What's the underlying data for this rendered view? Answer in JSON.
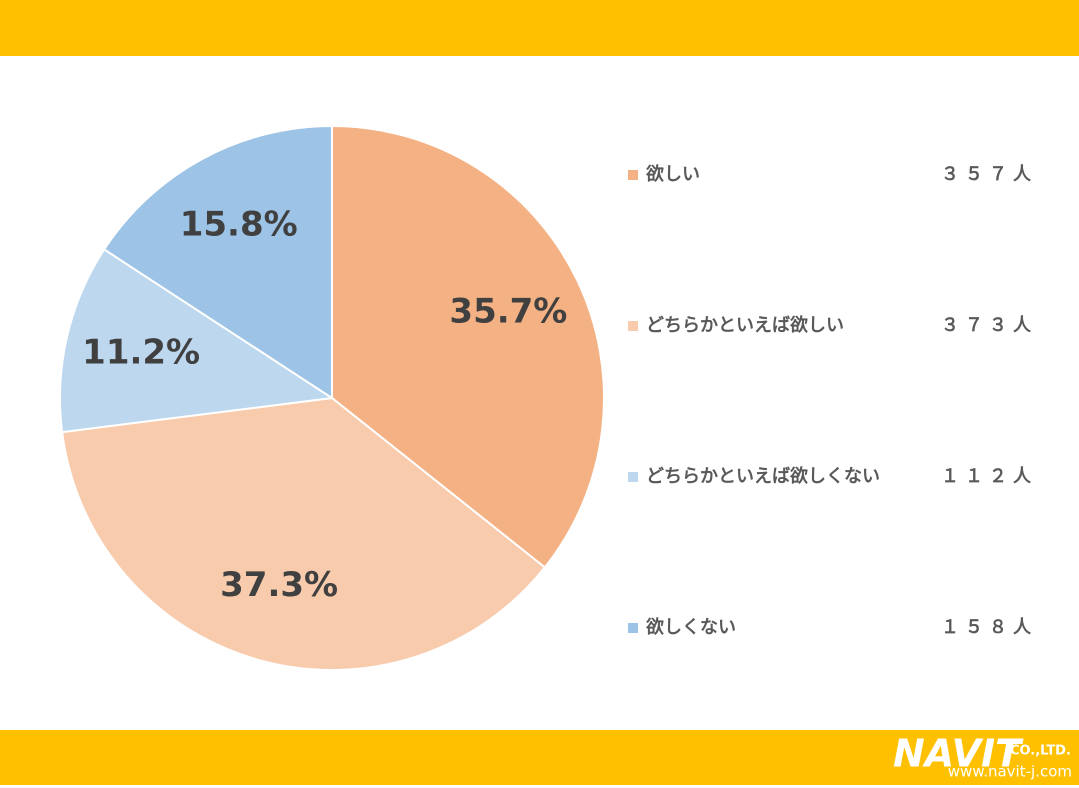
{
  "chart_data": {
    "type": "pie",
    "categories": [
      "欲しい",
      "どちらかといえば欲しい",
      "どちらかといえば欲しくない",
      "欲しくない"
    ],
    "values": [
      35.7,
      37.3,
      11.2,
      15.8
    ],
    "value_labels": [
      "35.7%",
      "37.3%",
      "11.2%",
      "15.8%"
    ],
    "count_labels": [
      "３５７人",
      "３７３人",
      "１１２人",
      "１５８人"
    ],
    "colors": [
      "#F4B183",
      "#F8CBAD",
      "#BDD7EE",
      "#9DC3E6"
    ],
    "legend": "right"
  },
  "logo": {
    "name": "NAVIT",
    "suffix": "CO.,LTD.",
    "url": "www.navit-j.com"
  }
}
